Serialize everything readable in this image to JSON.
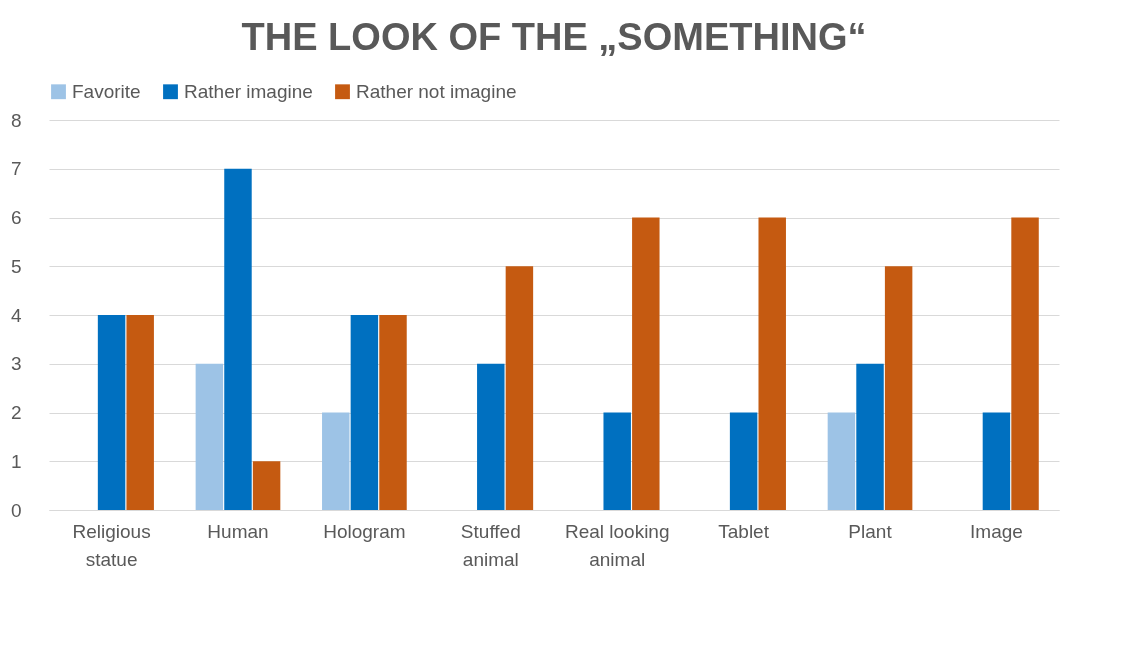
{
  "chart_data": {
    "type": "bar",
    "title": "THE LOOK OF THE „SOMETHING“",
    "categories": [
      "Religious statue",
      "Human",
      "Hologram",
      "Stuffed animal",
      "Real looking animal",
      "Tablet",
      "Plant",
      "Image"
    ],
    "series": [
      {
        "name": "Favorite",
        "color": "#9dc3e6",
        "values": [
          0,
          3,
          2,
          0,
          0,
          0,
          2,
          0
        ]
      },
      {
        "name": "Rather imagine",
        "color": "#0070c0",
        "values": [
          4,
          7,
          4,
          3,
          2,
          2,
          3,
          2
        ]
      },
      {
        "name": "Rather not imagine",
        "color": "#c55a11",
        "values": [
          4,
          1,
          4,
          5,
          6,
          6,
          5,
          6
        ]
      }
    ],
    "ylim": [
      0,
      8
    ],
    "yticks": [
      0,
      1,
      2,
      3,
      4,
      5,
      6,
      7,
      8
    ],
    "grid": "y",
    "legend": "top"
  }
}
